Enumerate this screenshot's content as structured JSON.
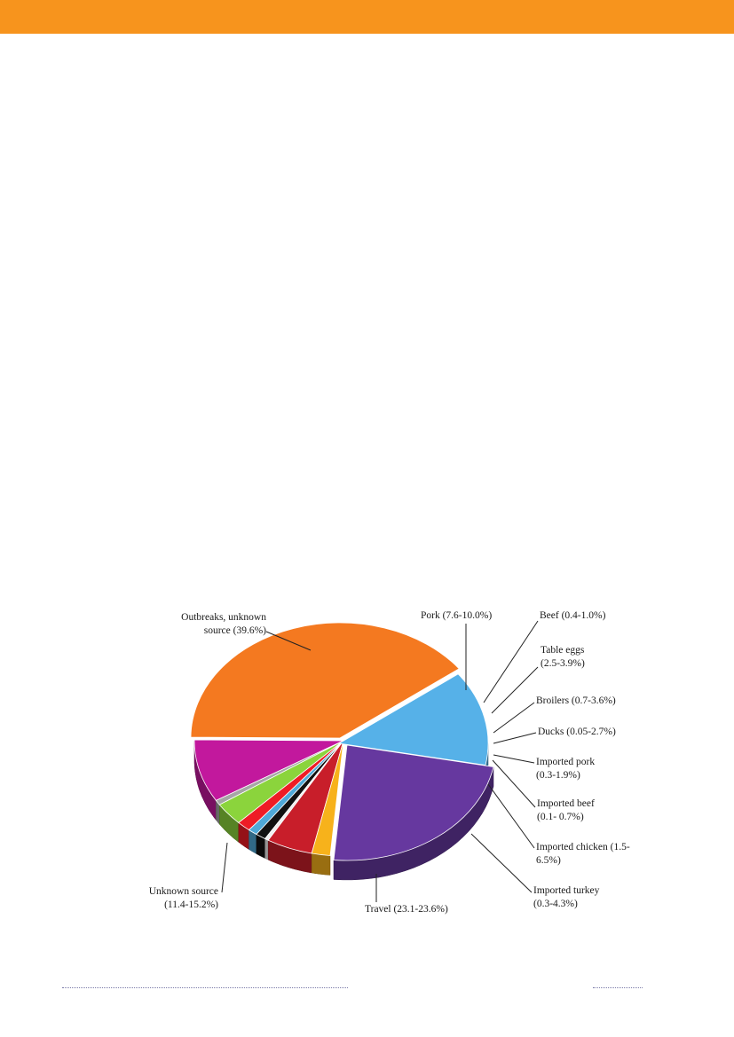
{
  "page": {
    "accent_color": "#F7941D"
  },
  "chart_data": {
    "type": "pie",
    "style": "3d-exploded-pie",
    "slices": [
      {
        "key": "outbreaks",
        "lines": [
          "Outbreaks, unknown",
          "source (39.6%)"
        ],
        "value": 39.6,
        "color": "#F47920"
      },
      {
        "key": "pork",
        "lines": [
          "Pork (7.6-10.0%)"
        ],
        "value": 8.8,
        "color": "#C2189D"
      },
      {
        "key": "beef",
        "lines": [
          "Beef (0.4-1.0%)"
        ],
        "value": 0.7,
        "color": "#A6A6A6"
      },
      {
        "key": "table-eggs",
        "lines": [
          "Table eggs",
          "(2.5-3.9%)"
        ],
        "value": 3.2,
        "color": "#8BD43C"
      },
      {
        "key": "broilers",
        "lines": [
          "Broilers (0.7-3.6%)"
        ],
        "value": 1.5,
        "color": "#EE1C25"
      },
      {
        "key": "ducks",
        "lines": [
          "Ducks (0.05-2.7%)"
        ],
        "value": 1.0,
        "color": "#4FA9D8"
      },
      {
        "key": "imported-pork",
        "lines": [
          "Imported pork",
          "(0.3-1.9%)"
        ],
        "value": 1.1,
        "color": "#111111"
      },
      {
        "key": "imported-beef",
        "lines": [
          "Imported beef",
          "(0.1- 0.7%)"
        ],
        "value": 0.4,
        "color": "#F0F0F0"
      },
      {
        "key": "imported-chicken",
        "lines": [
          "Imported chicken (1.5-",
          "6.5%)"
        ],
        "value": 5.0,
        "color": "#C81E2A"
      },
      {
        "key": "imported-turkey",
        "lines": [
          "Imported turkey",
          "(0.3-4.3%)"
        ],
        "value": 2.0,
        "color": "#F7B21B"
      },
      {
        "key": "travel",
        "lines": [
          "Travel (23.1-23.6%)"
        ],
        "value": 23.4,
        "color": "#66389F"
      },
      {
        "key": "unknown-source",
        "lines": [
          "Unknown source",
          "(11.4-15.2%)"
        ],
        "value": 13.3,
        "color": "#56B1E8"
      }
    ]
  }
}
